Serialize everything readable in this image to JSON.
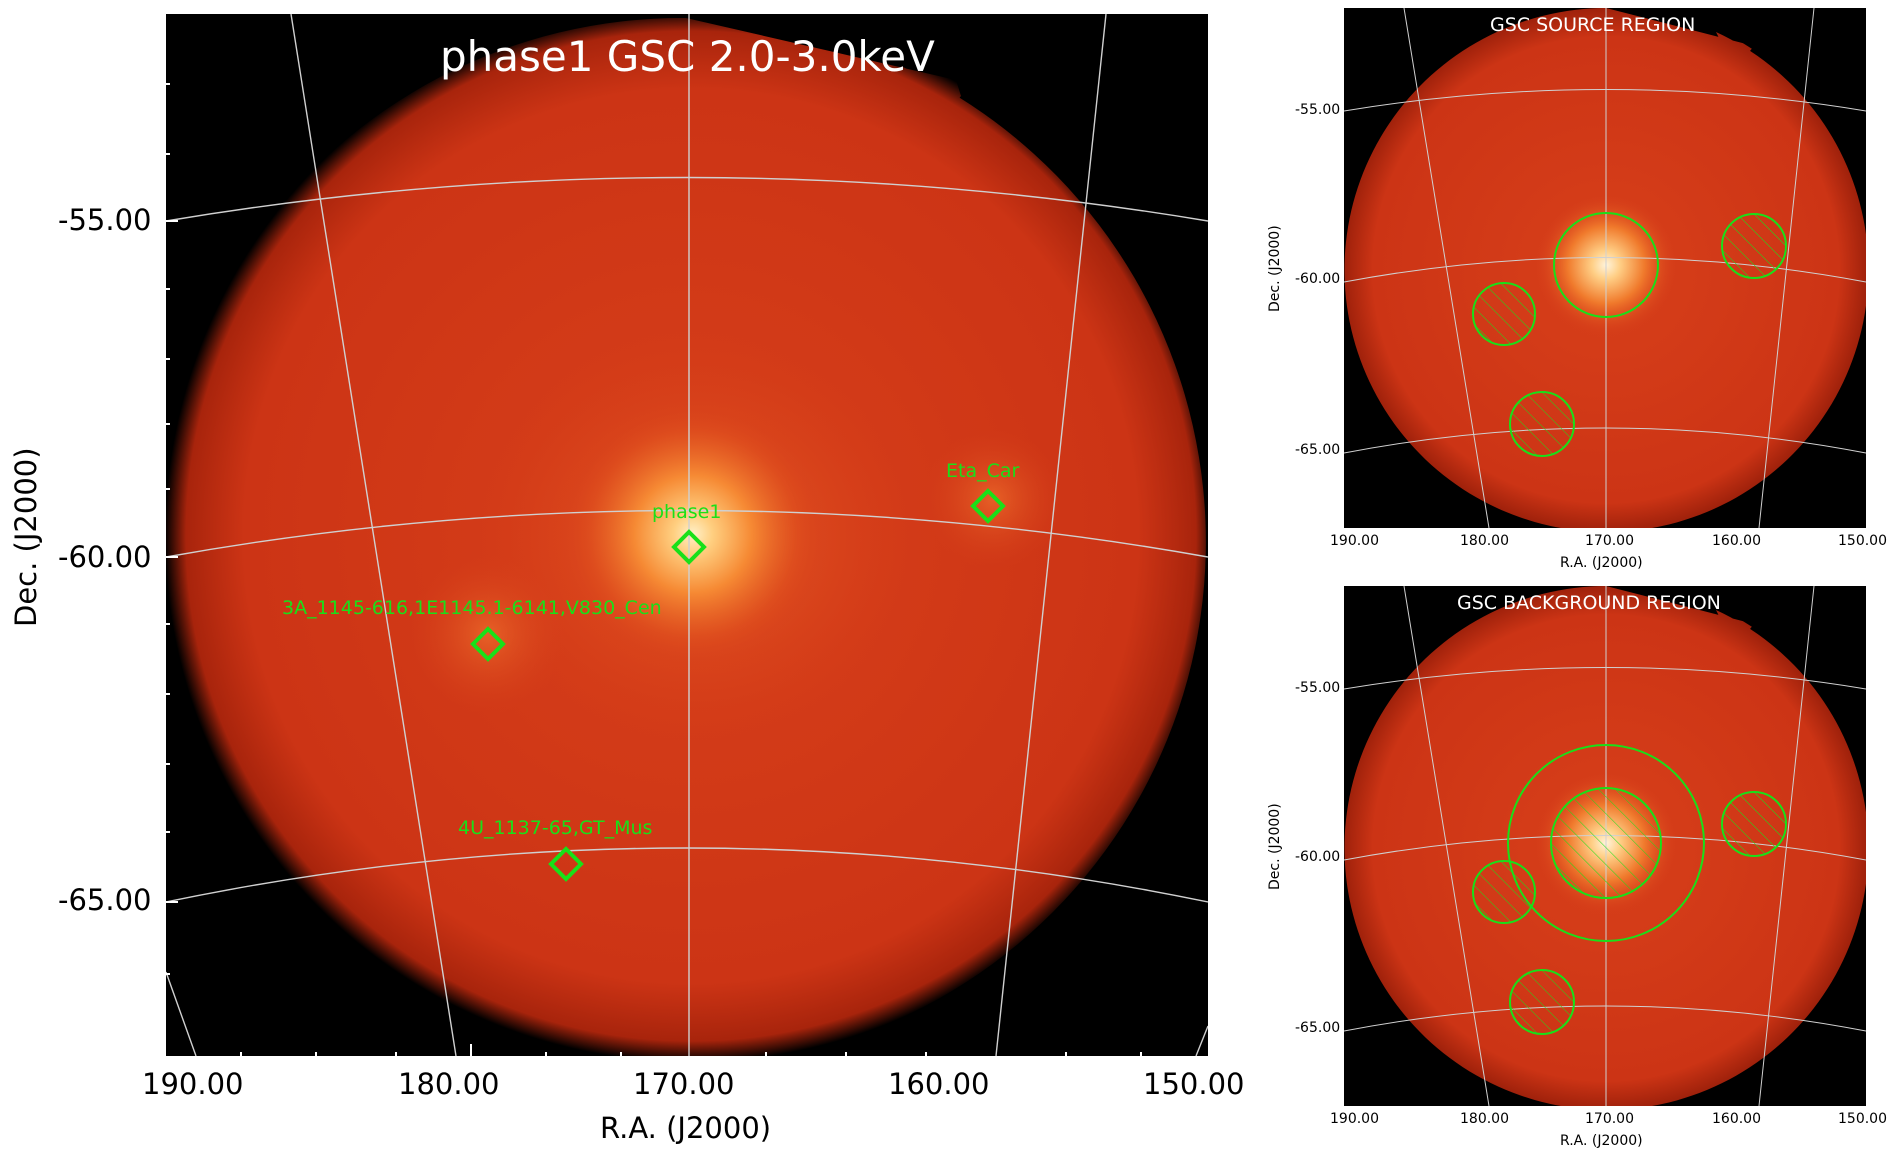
{
  "main_panel": {
    "title": "phase1 GSC 2.0-3.0keV",
    "x_axis_label": "R.A. (J2000)",
    "y_axis_label": "Dec. (J2000)",
    "x_ticks": [
      "190.00",
      "180.00",
      "170.00",
      "160.00",
      "150.00"
    ],
    "y_ticks": [
      "-55.00",
      "-60.00",
      "-65.00"
    ],
    "sources": [
      {
        "name": "phase1",
        "ra": 170.0,
        "dec": -59.6
      },
      {
        "name": "Eta_Car",
        "ra": 158.2,
        "dec": -59.0
      },
      {
        "name": "3A_1145-616,1E1145.1-6141,V830_Cen",
        "ra": 178.3,
        "dec": -61.0
      },
      {
        "name": "4U_1137-65,GT_Mus",
        "ra": 175.1,
        "dec": -64.3
      }
    ]
  },
  "source_region_panel": {
    "title": "GSC SOURCE REGION",
    "x_axis_label": "R.A. (J2000)",
    "y_axis_label": "Dec. (J2000)",
    "x_ticks": [
      "190.00",
      "180.00",
      "170.00",
      "160.00",
      "150.00"
    ],
    "y_ticks": [
      "-55.00",
      "-60.00",
      "-65.00"
    ]
  },
  "background_region_panel": {
    "title": "GSC BACKGROUND REGION",
    "x_axis_label": "R.A. (J2000)",
    "y_axis_label": "Dec. (J2000)",
    "x_ticks": [
      "190.00",
      "180.00",
      "170.00",
      "160.00",
      "150.00"
    ],
    "y_ticks": [
      "-55.00",
      "-60.00",
      "-65.00"
    ]
  },
  "colors": {
    "background": "#000000",
    "sky_edge": "#b8200c",
    "sky_mid": "#d83a14",
    "sky_bright": "#ffd49a",
    "grid_line": "#cfcfcf",
    "region_marker": "#19e019",
    "title_text": "#ffffff"
  }
}
